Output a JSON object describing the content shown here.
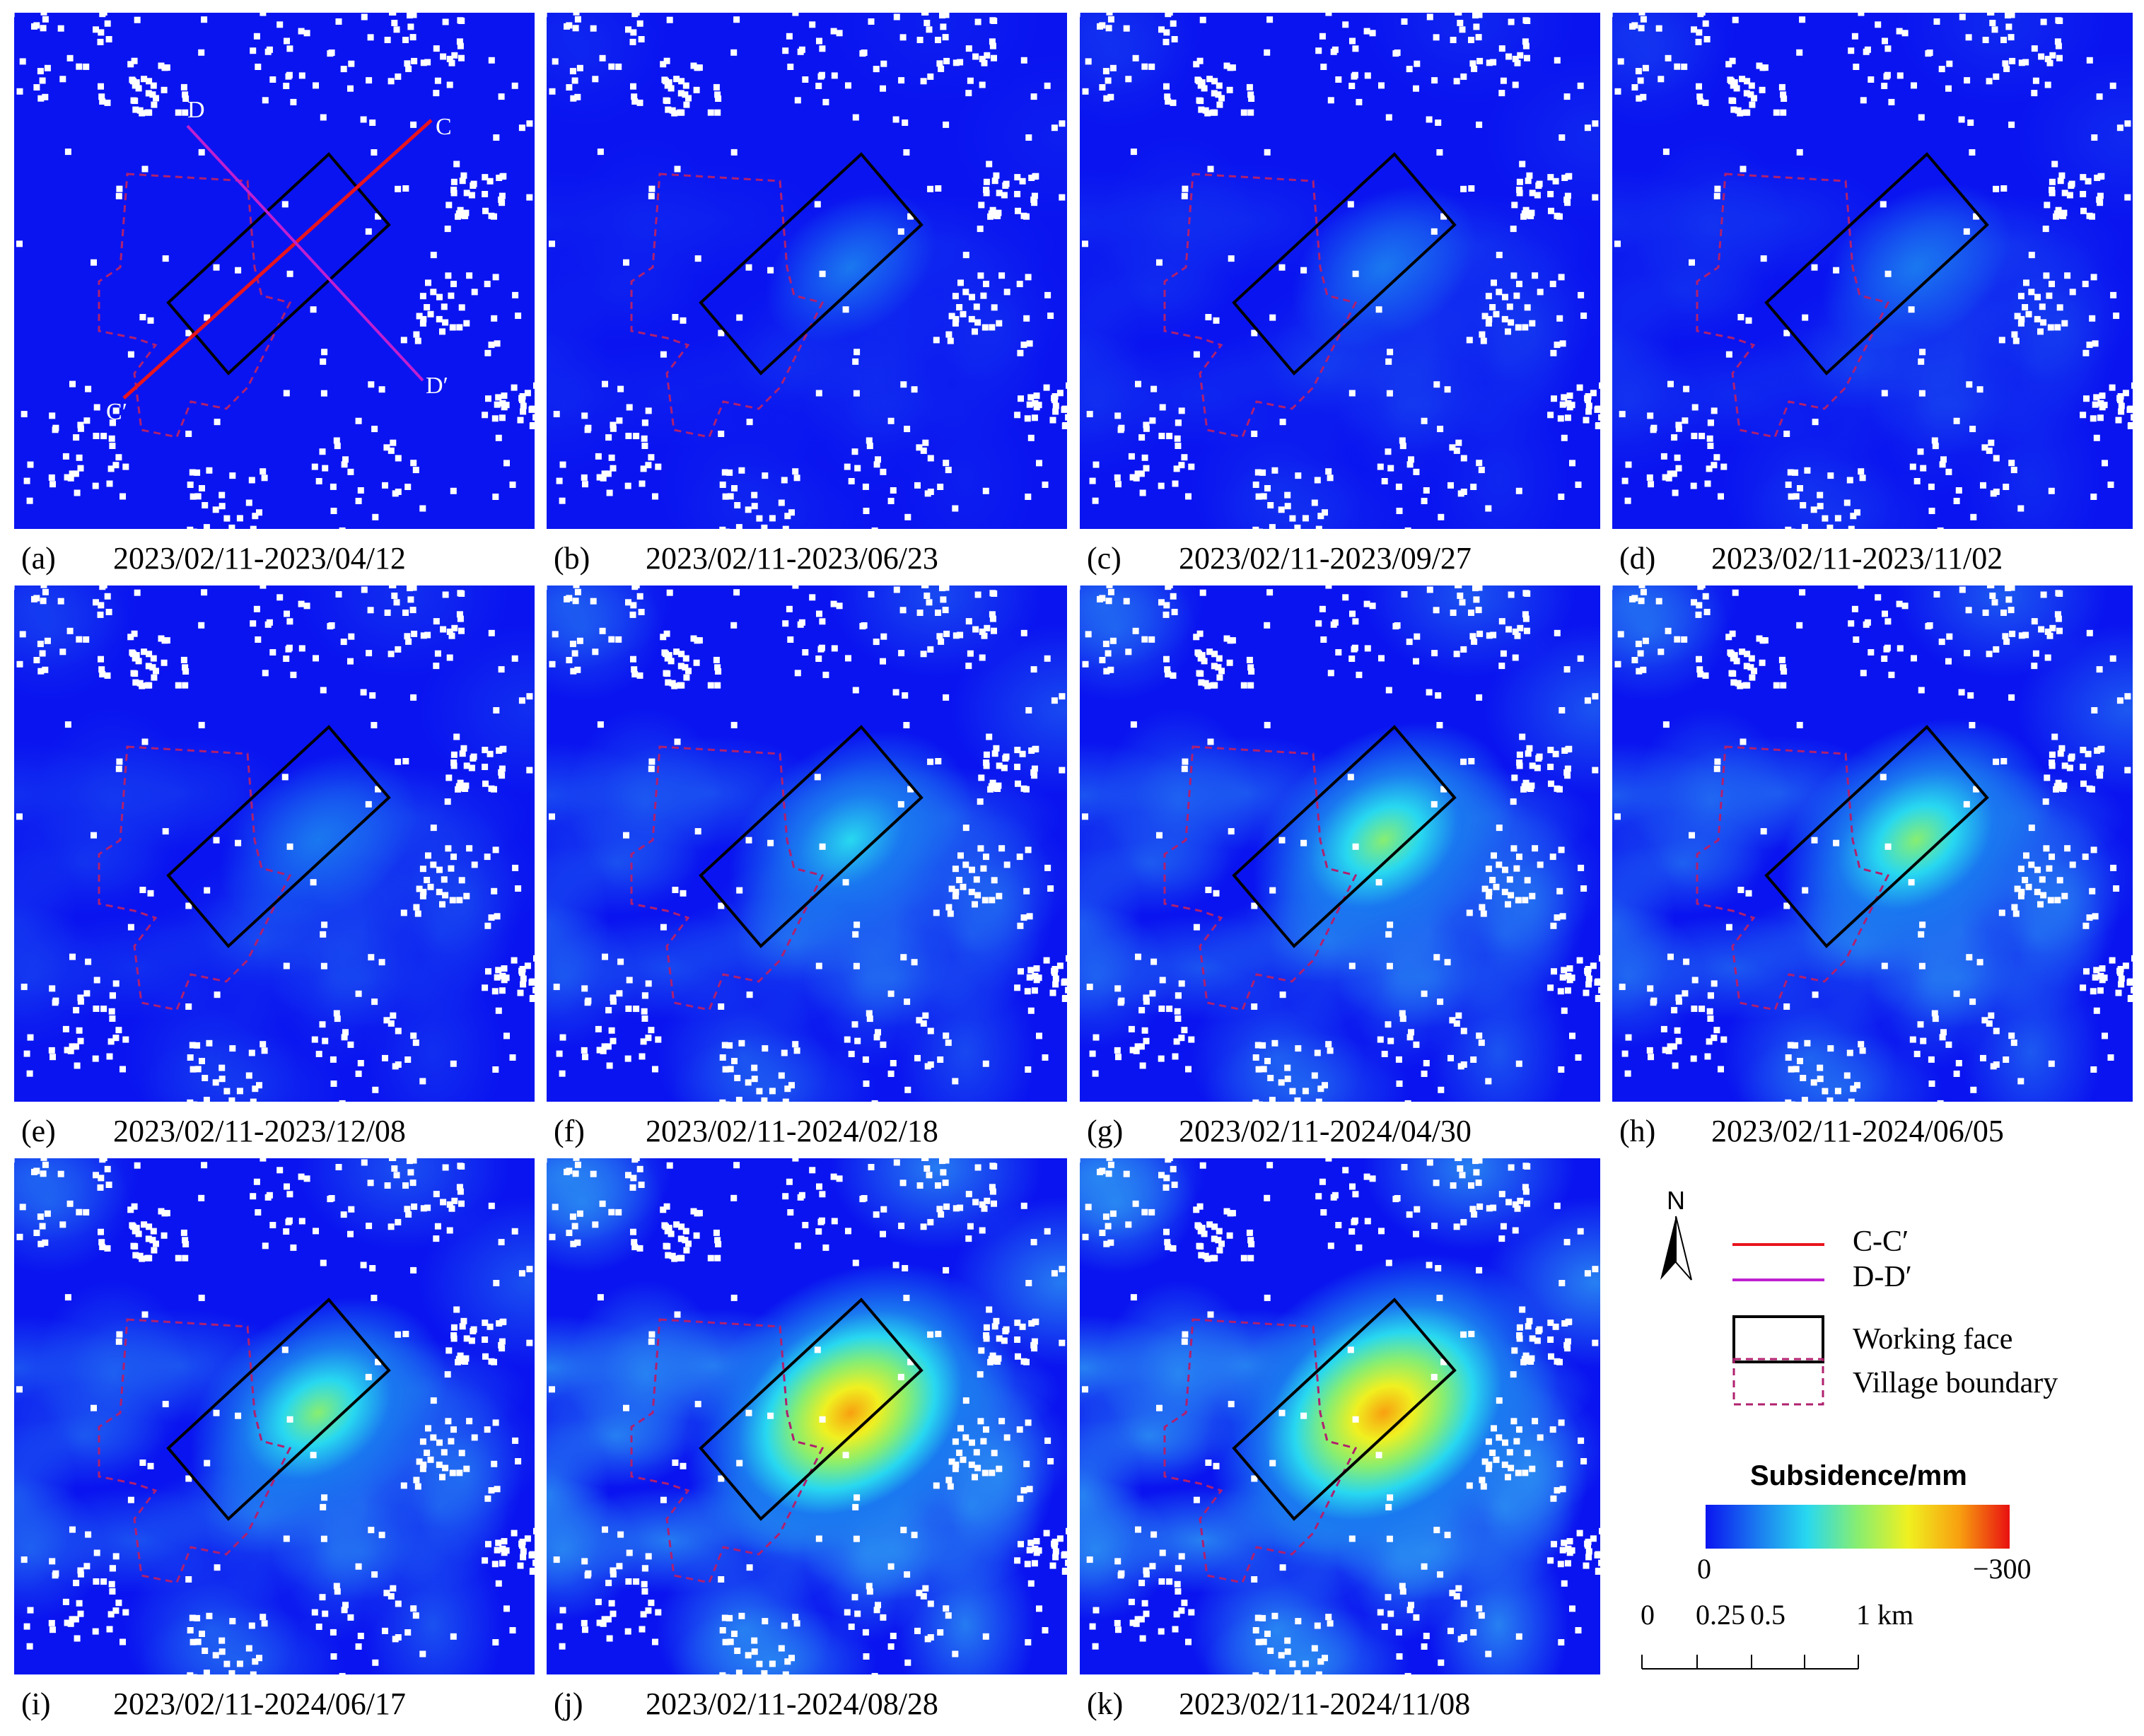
{
  "panels": [
    {
      "letter": "(a)",
      "date": "2023/02/11-2023/04/12",
      "level": 0.0,
      "show_profiles": true
    },
    {
      "letter": "(b)",
      "date": "2023/02/11-2023/06/23",
      "level": 0.08,
      "show_profiles": false
    },
    {
      "letter": "(c)",
      "date": "2023/02/11-2023/09/27",
      "level": 0.14,
      "show_profiles": false
    },
    {
      "letter": "(d)",
      "date": "2023/02/11-2023/11/02",
      "level": 0.16,
      "show_profiles": false
    },
    {
      "letter": "(e)",
      "date": "2023/02/11-2023/12/08",
      "level": 0.2,
      "show_profiles": false
    },
    {
      "letter": "(f)",
      "date": "2023/02/11-2024/02/18",
      "level": 0.4,
      "show_profiles": false
    },
    {
      "letter": "(g)",
      "date": "2023/02/11-2024/04/30",
      "level": 0.48,
      "show_profiles": false
    },
    {
      "letter": "(h)",
      "date": "2023/02/11-2024/06/05",
      "level": 0.52,
      "show_profiles": false
    },
    {
      "letter": "(i)",
      "date": "2023/02/11-2024/06/17",
      "level": 0.46,
      "show_profiles": false
    },
    {
      "letter": "(j)",
      "date": "2023/02/11-2024/08/28",
      "level": 0.78,
      "show_profiles": false
    },
    {
      "letter": "(k)",
      "date": "2023/02/11-2024/11/08",
      "level": 0.86,
      "show_profiles": false
    }
  ],
  "profile_labels": {
    "c": "C",
    "c_prime": "C′",
    "d": "D",
    "d_prime": "D′"
  },
  "legend": {
    "north": "N",
    "items": [
      {
        "label": "C-C′",
        "color": "#e8141e"
      },
      {
        "label": "D-D′",
        "color": "#c020d0"
      },
      {
        "label": "Working face",
        "color": "#000000"
      },
      {
        "label": "Village boundary",
        "color": "#b0206e"
      }
    ],
    "colorbar_title": "Subsidence/mm",
    "colorbar_min": "0",
    "colorbar_max": "−300",
    "colorbar_stops": [
      "#0a14f0",
      "#1a78f0",
      "#28d8f0",
      "#88ee70",
      "#f0f020",
      "#f8a010",
      "#e81010"
    ],
    "scalebar_labels": [
      "0",
      "0.25",
      "0.5",
      "1 km"
    ]
  }
}
